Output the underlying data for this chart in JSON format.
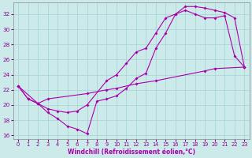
{
  "xlabel": "Windchill (Refroidissement éolien,°C)",
  "xlim": [
    -0.5,
    23.5
  ],
  "ylim": [
    15.5,
    33.5
  ],
  "xticks": [
    0,
    1,
    2,
    3,
    4,
    5,
    6,
    7,
    8,
    9,
    10,
    11,
    12,
    13,
    14,
    15,
    16,
    17,
    18,
    19,
    20,
    21,
    22,
    23
  ],
  "yticks": [
    16,
    18,
    20,
    22,
    24,
    26,
    28,
    30,
    32
  ],
  "bg_color": "#cceaea",
  "grid_color": "#aad8d8",
  "line_color": "#aa00aa",
  "line1_x": [
    0,
    1,
    2,
    3,
    4,
    5,
    6,
    7,
    8,
    9,
    10,
    11,
    12,
    13,
    14,
    15,
    16,
    17,
    18,
    19,
    20,
    21,
    22,
    23
  ],
  "line1_y": [
    22.5,
    20.8,
    20.2,
    19.0,
    18.2,
    17.2,
    16.8,
    16.2,
    20.5,
    20.8,
    21.2,
    22.2,
    23.5,
    24.2,
    27.5,
    29.5,
    32.0,
    33.0,
    33.0,
    32.8,
    32.5,
    32.2,
    31.5,
    25.0
  ],
  "line2_x": [
    0,
    1,
    2,
    3,
    4,
    5,
    6,
    7,
    9,
    10,
    11,
    12,
    13,
    14,
    15,
    16,
    17,
    18,
    19,
    20,
    21,
    22,
    23
  ],
  "line2_y": [
    22.5,
    20.8,
    20.2,
    19.5,
    19.2,
    19.0,
    19.2,
    20.0,
    23.2,
    24.0,
    25.5,
    27.0,
    27.5,
    29.5,
    31.5,
    32.0,
    32.5,
    32.0,
    31.5,
    31.5,
    31.8,
    26.5,
    25.0
  ],
  "line3_x": [
    0,
    2,
    3,
    7,
    9,
    10,
    12,
    14,
    19,
    20,
    23
  ],
  "line3_y": [
    22.5,
    20.2,
    20.8,
    21.5,
    22.0,
    22.2,
    22.8,
    23.2,
    24.5,
    24.8,
    25.0
  ]
}
